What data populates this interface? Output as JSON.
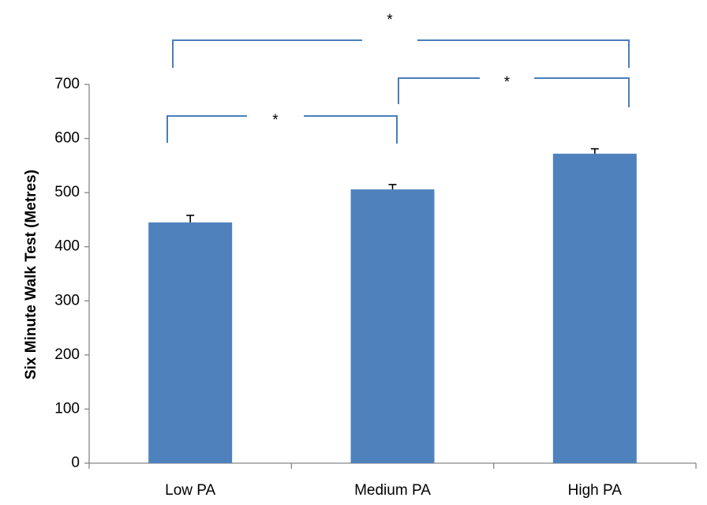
{
  "chart_data": {
    "type": "bar",
    "title": "",
    "xlabel": "",
    "ylabel": "Six Minute Walk Test (Metres)",
    "categories": [
      "Low PA",
      "Medium PA",
      "High PA"
    ],
    "values": [
      445,
      506,
      572
    ],
    "errors": [
      13,
      9,
      9
    ],
    "ylim": [
      0,
      700
    ],
    "yticks": [
      0,
      100,
      200,
      300,
      400,
      500,
      600,
      700
    ],
    "bar_color": "#4f81bd",
    "bracket_color": "#4a7ebb",
    "grid": false,
    "legend": "none",
    "significance": [
      {
        "from": 0,
        "to": 1,
        "label": "*"
      },
      {
        "from": 1,
        "to": 2,
        "label": "*"
      },
      {
        "from": 0,
        "to": 2,
        "label": "*"
      }
    ]
  }
}
